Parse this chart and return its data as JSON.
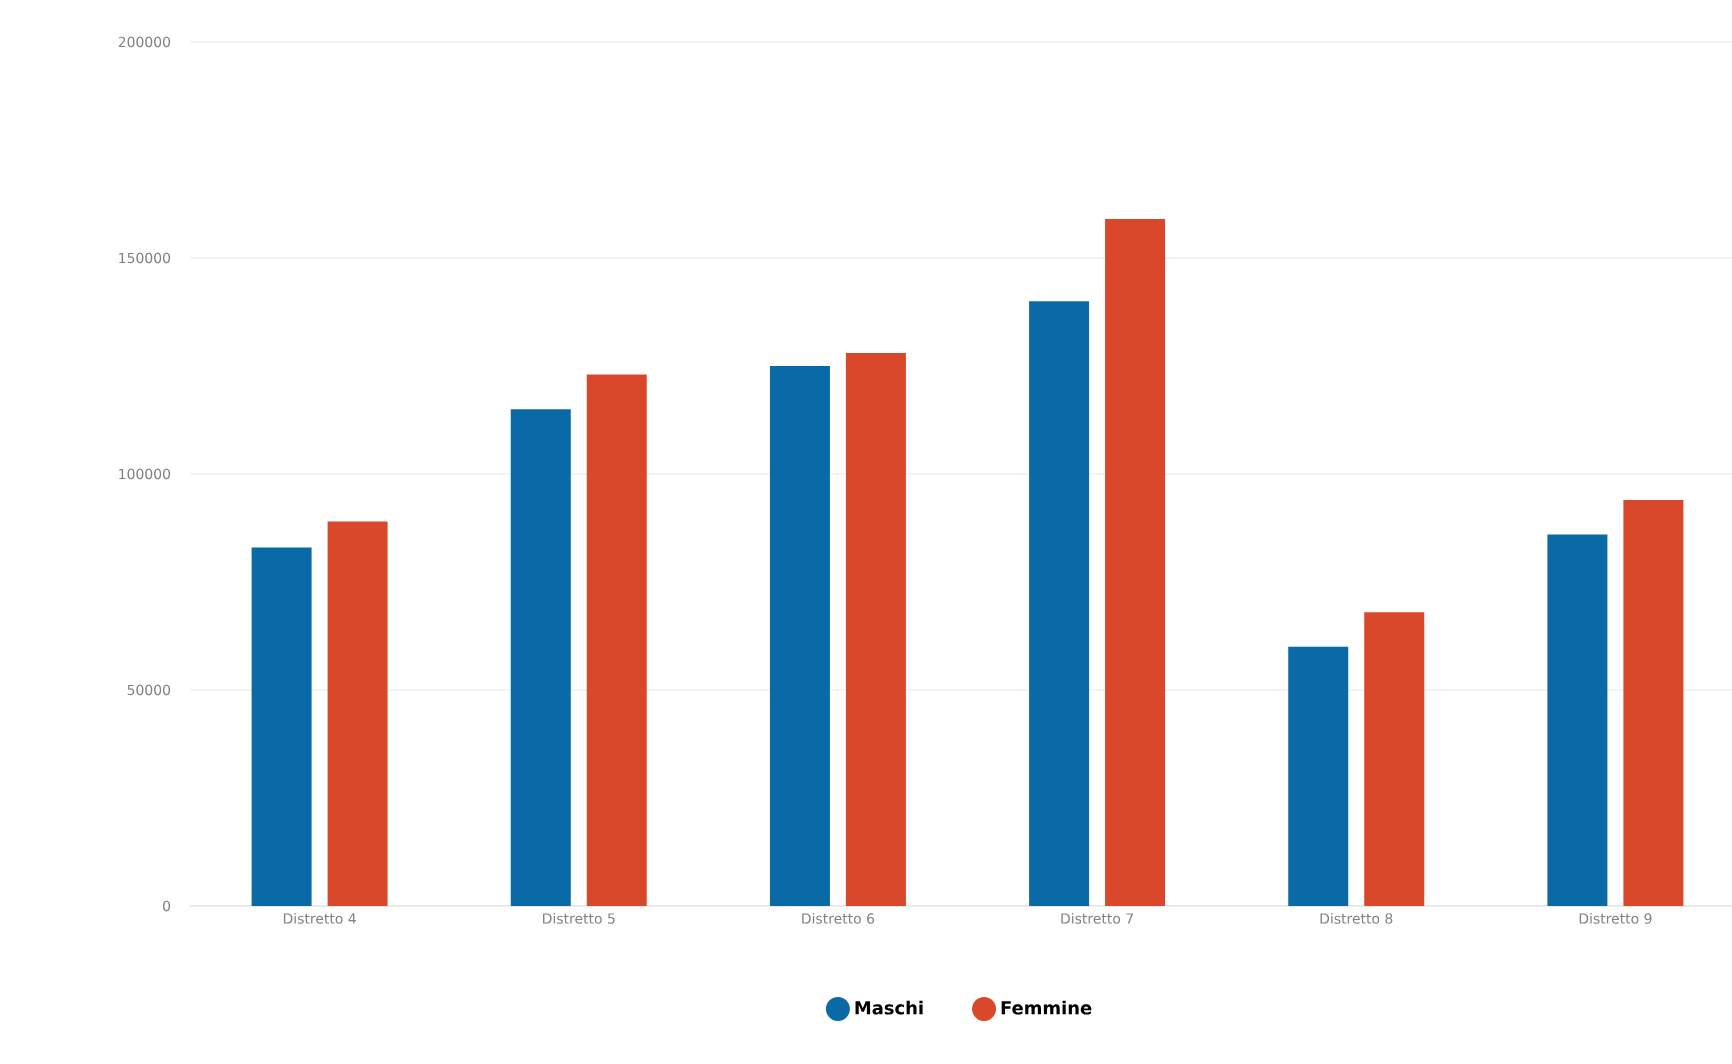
{
  "chart_data": {
    "type": "bar",
    "categories": [
      "Distretto 4",
      "Distretto 5",
      "Distretto 6",
      "Distretto 7",
      "Distretto 8",
      "Distretto 9"
    ],
    "series": [
      {
        "name": "Maschi",
        "color": "#0a6aa6",
        "values": [
          83000,
          115000,
          125000,
          140000,
          60000,
          86000
        ]
      },
      {
        "name": "Femmine",
        "color": "#d9482b",
        "values": [
          89000,
          123000,
          128000,
          159000,
          68000,
          94000
        ]
      }
    ],
    "ylim": [
      0,
      200000
    ],
    "yticks": [
      0,
      50000,
      100000,
      150000,
      200000
    ],
    "grid": "y",
    "legend": "bottom"
  }
}
